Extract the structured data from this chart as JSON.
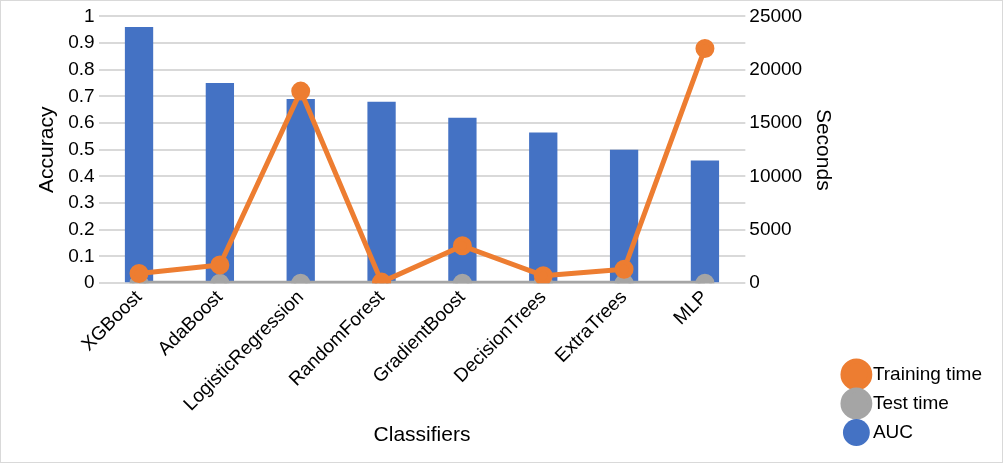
{
  "chart_data": {
    "type": "bar",
    "xlabel": "Classifiers",
    "ylabel": "Accuracy",
    "y2label": "Seconds",
    "categories": [
      "XGBoost",
      "AdaBoost",
      "LogisticRegression",
      "RandomForest",
      "GradientBoost",
      "DecisionTrees",
      "ExtraTrees",
      "MLP"
    ],
    "series": [
      {
        "name": "AUC",
        "color": "#4472c4",
        "values": [
          0.96,
          0.75,
          0.69,
          0.68,
          0.62,
          0.565,
          0.5,
          0.46
        ]
      },
      {
        "name": "Training time",
        "type": "line",
        "axis": "y2",
        "color": "#ed7d31",
        "values": [
          900,
          1700,
          18000,
          100,
          3500,
          700,
          1300,
          22000
        ]
      },
      {
        "name": "Test time",
        "type": "line",
        "axis": "y2",
        "color": "#a5a5a5",
        "values": [
          0,
          0,
          0,
          0,
          0,
          0,
          0,
          0
        ]
      }
    ],
    "ylim": [
      0,
      1
    ],
    "yticks": [
      0,
      0.1,
      0.2,
      0.3,
      0.4,
      0.5,
      0.6,
      0.7,
      0.8,
      0.9,
      1
    ],
    "y2lim": [
      0,
      25000
    ],
    "y2ticks": [
      0,
      5000,
      10000,
      15000,
      20000,
      25000
    ],
    "grid": "y",
    "legend": "bottom right",
    "marker": "circle",
    "line_style": "solid"
  }
}
